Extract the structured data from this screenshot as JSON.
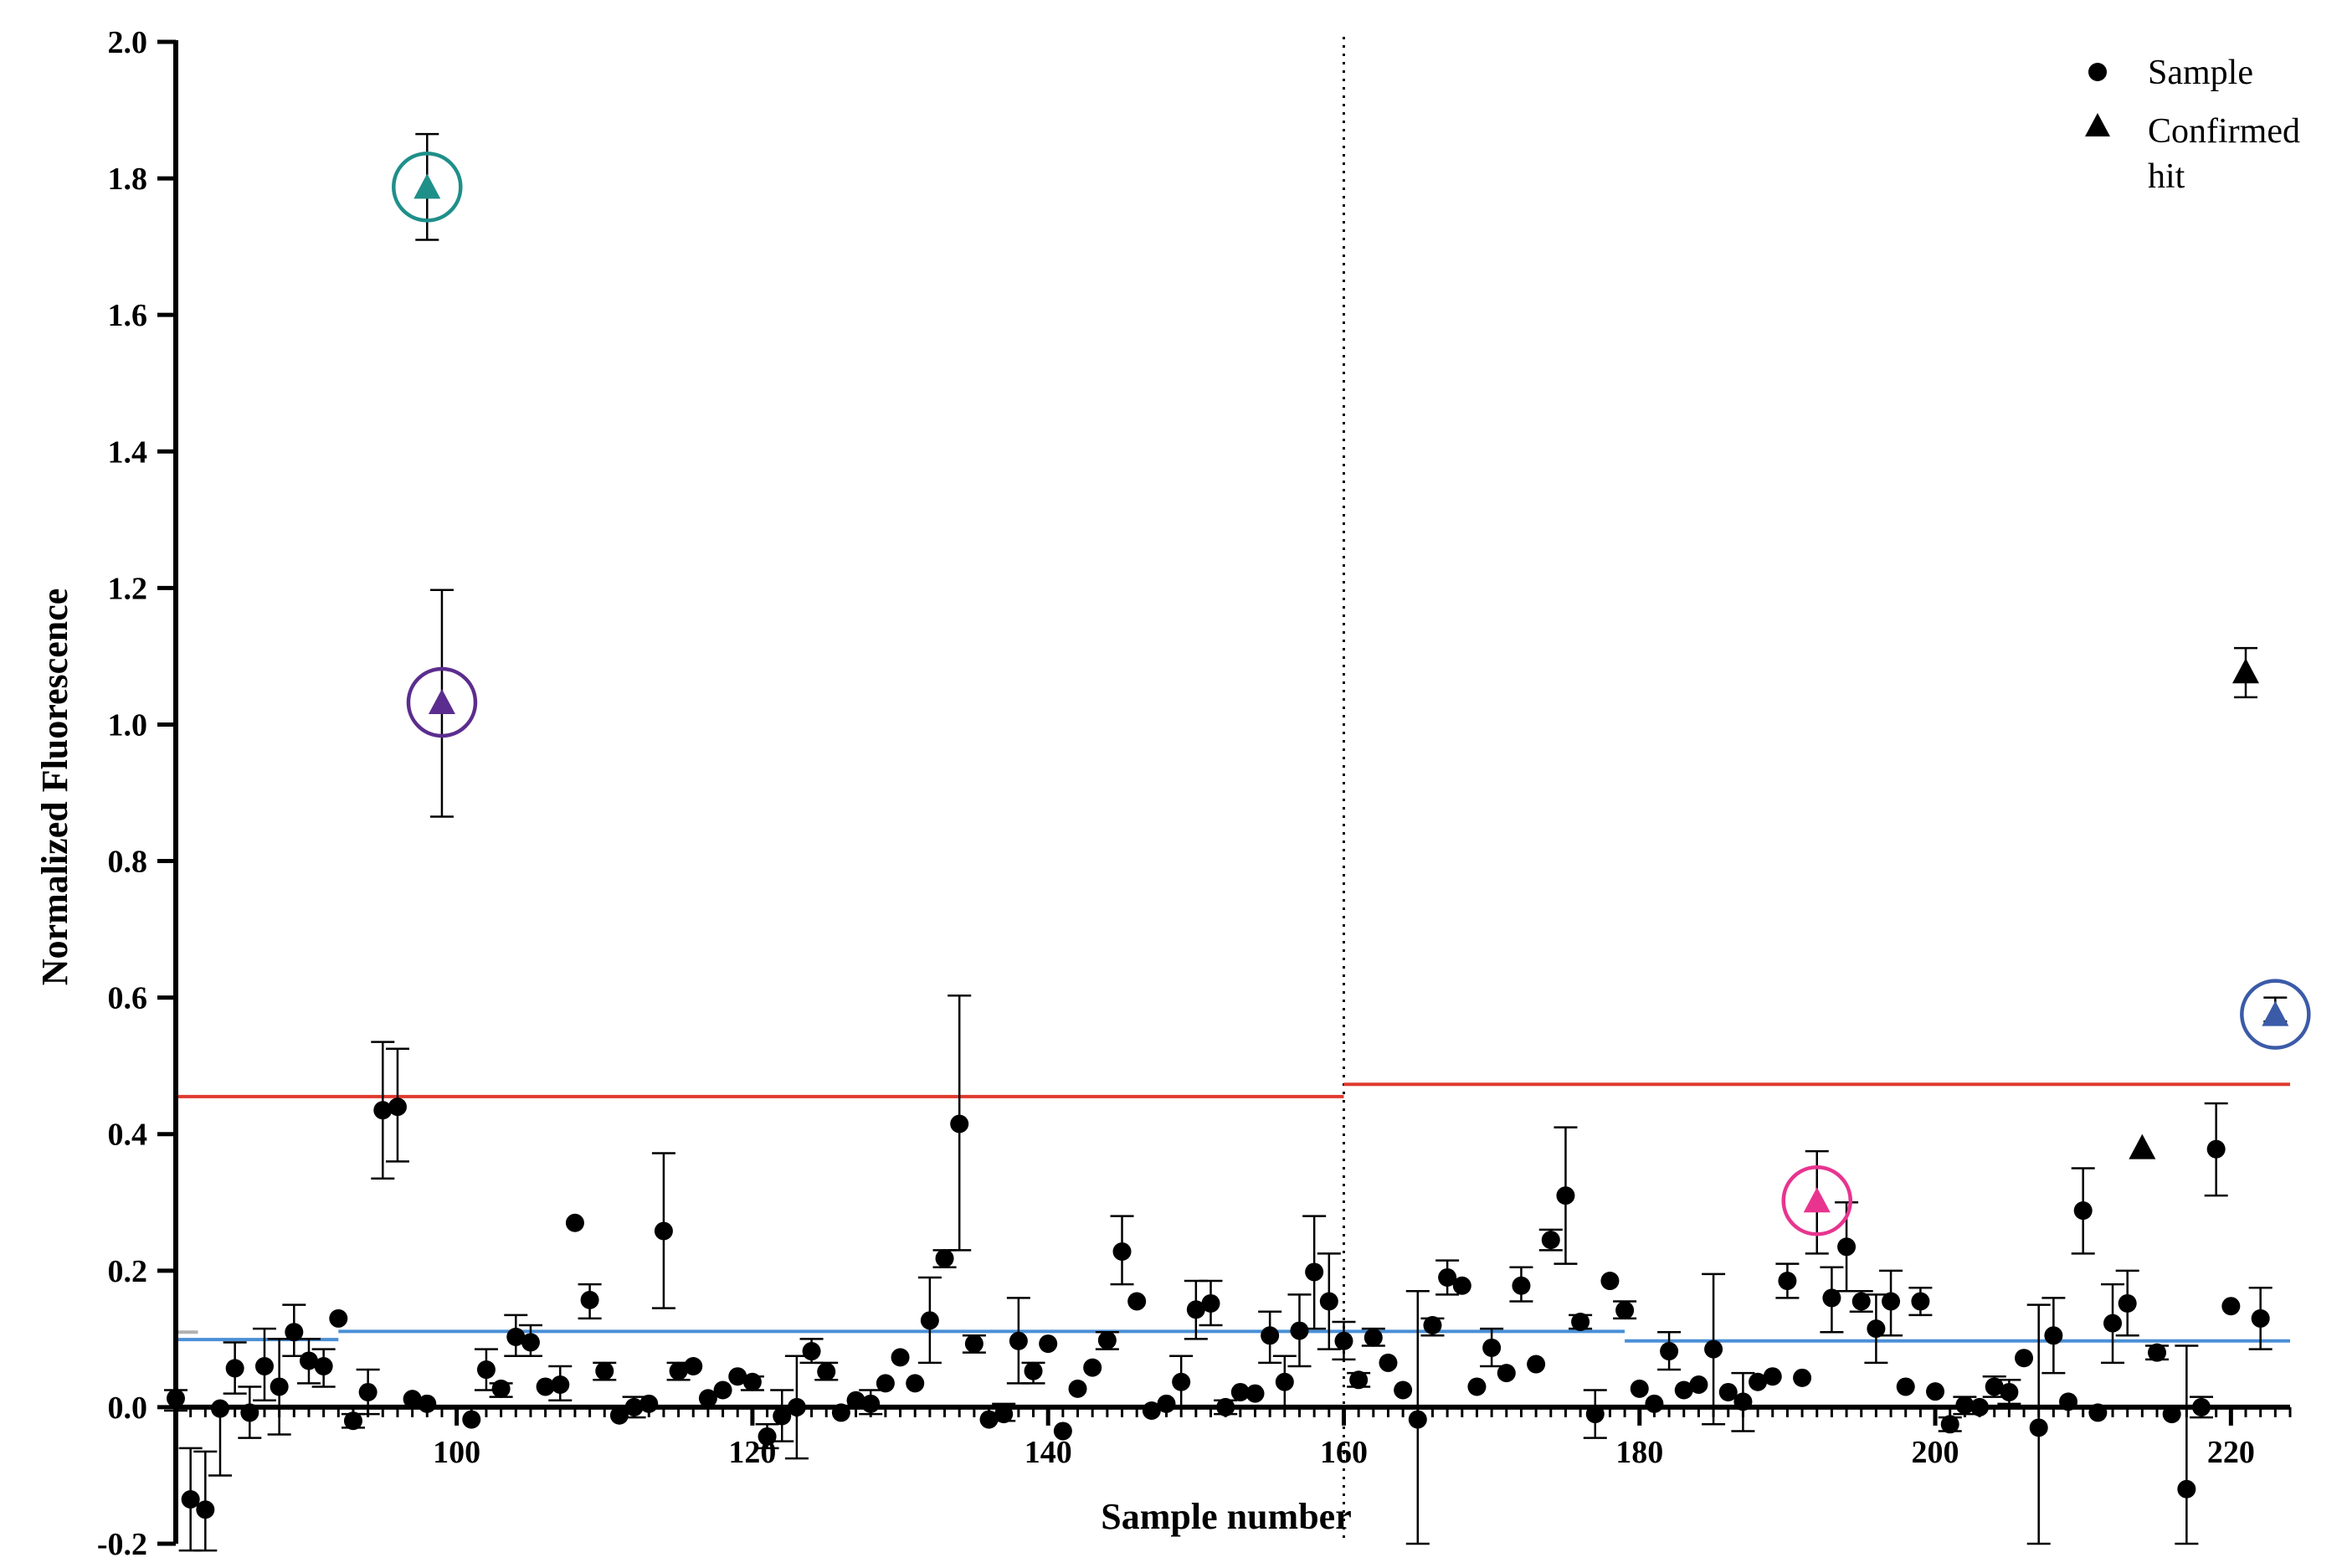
{
  "chart_data": {
    "type": "scatter",
    "xlabel": "Sample number",
    "ylabel": "Normalized Fluorescence",
    "xlim": [
      81,
      224
    ],
    "ylim": [
      -0.2,
      2.0
    ],
    "x_ticks": [
      100,
      120,
      140,
      160,
      180,
      200,
      220
    ],
    "x_tick_labels": [
      "100",
      "120",
      "140",
      "160",
      "180",
      "200",
      "220"
    ],
    "y_ticks": [
      -0.2,
      0.0,
      0.2,
      0.4,
      0.6,
      0.8,
      1.0,
      1.2,
      1.4,
      1.6,
      1.8,
      2.0
    ],
    "y_tick_labels": [
      "-0.2",
      "0.0",
      "0.2",
      "0.4",
      "0.6",
      "0.8",
      "1.0",
      "1.2",
      "1.4",
      "1.6",
      "1.8",
      "2.0"
    ],
    "grid": false,
    "legend": {
      "position": "top-right",
      "entries": [
        {
          "marker": "circle",
          "label": "Sample"
        },
        {
          "marker": "triangle",
          "label_lines": [
            "Confirmed",
            "hit"
          ]
        }
      ]
    },
    "divider_x": 160,
    "threshold_lines": [
      {
        "color": "#e03a2e",
        "x_start": 81,
        "x_end": 160,
        "y": 0.455
      },
      {
        "color": "#e03a2e",
        "x_start": 160,
        "x_end": 224,
        "y": 0.473
      }
    ],
    "baseline_lines": [
      {
        "color": "#b0b0b0",
        "x_start": 81,
        "x_end": 82.5,
        "y": 0.11
      },
      {
        "color": "#4a8fd6",
        "x_start": 81,
        "x_end": 92,
        "y": 0.099
      },
      {
        "color": "#4a8fd6",
        "x_start": 92,
        "x_end": 179,
        "y": 0.111
      },
      {
        "color": "#4a8fd6",
        "x_start": 179,
        "x_end": 224,
        "y": 0.097
      }
    ],
    "series": [
      {
        "marker": "circle",
        "points": [
          {
            "x": 81,
            "y": 0.013,
            "lo": -0.005,
            "hi": 0.025
          },
          {
            "x": 82,
            "y": -0.135,
            "lo": -0.21,
            "hi": -0.06
          },
          {
            "x": 83,
            "y": -0.15,
            "lo": -0.21,
            "hi": -0.065
          },
          {
            "x": 84,
            "y": -0.002,
            "lo": -0.1,
            "hi": 0.0
          },
          {
            "x": 85,
            "y": 0.057,
            "lo": 0.02,
            "hi": 0.095
          },
          {
            "x": 86,
            "y": -0.008,
            "lo": -0.045,
            "hi": 0.03
          },
          {
            "x": 87,
            "y": 0.06,
            "lo": 0.01,
            "hi": 0.115
          },
          {
            "x": 88,
            "y": 0.03,
            "lo": -0.04,
            "hi": 0.1
          },
          {
            "x": 89,
            "y": 0.11,
            "lo": 0.075,
            "hi": 0.15
          },
          {
            "x": 90,
            "y": 0.068,
            "lo": 0.035,
            "hi": 0.1
          },
          {
            "x": 91,
            "y": 0.06,
            "lo": 0.03,
            "hi": 0.085
          },
          {
            "x": 92,
            "y": 0.13
          },
          {
            "x": 93,
            "y": -0.02,
            "lo": -0.03,
            "hi": -0.01
          },
          {
            "x": 94,
            "y": 0.022,
            "lo": -0.01,
            "hi": 0.055
          },
          {
            "x": 95,
            "y": 0.435,
            "lo": 0.335,
            "hi": 0.535
          },
          {
            "x": 96,
            "y": 0.44,
            "lo": 0.36,
            "hi": 0.525
          },
          {
            "x": 97,
            "y": 0.012
          },
          {
            "x": 98,
            "y": 0.005
          },
          {
            "x": 101,
            "y": -0.018
          },
          {
            "x": 102,
            "y": 0.055,
            "lo": 0.025,
            "hi": 0.085
          },
          {
            "x": 103,
            "y": 0.027,
            "lo": 0.015,
            "hi": 0.035
          },
          {
            "x": 104,
            "y": 0.103,
            "lo": 0.075,
            "hi": 0.135
          },
          {
            "x": 105,
            "y": 0.095,
            "lo": 0.075,
            "hi": 0.12
          },
          {
            "x": 106,
            "y": 0.03
          },
          {
            "x": 107,
            "y": 0.033,
            "lo": 0.01,
            "hi": 0.06
          },
          {
            "x": 108,
            "y": 0.27
          },
          {
            "x": 109,
            "y": 0.157,
            "lo": 0.13,
            "hi": 0.18
          },
          {
            "x": 110,
            "y": 0.053,
            "lo": 0.04,
            "hi": 0.065
          },
          {
            "x": 111,
            "y": -0.012
          },
          {
            "x": 112,
            "y": 0.0,
            "lo": -0.015,
            "hi": 0.015
          },
          {
            "x": 113,
            "y": 0.005
          },
          {
            "x": 114,
            "y": 0.258,
            "lo": 0.145,
            "hi": 0.372
          },
          {
            "x": 115,
            "y": 0.053,
            "lo": 0.04,
            "hi": 0.065
          },
          {
            "x": 116,
            "y": 0.06
          },
          {
            "x": 117,
            "y": 0.013
          },
          {
            "x": 118,
            "y": 0.025
          },
          {
            "x": 119,
            "y": 0.045
          },
          {
            "x": 120,
            "y": 0.037,
            "lo": 0.025,
            "hi": 0.045
          },
          {
            "x": 121,
            "y": -0.043,
            "lo": -0.06,
            "hi": -0.025
          },
          {
            "x": 122,
            "y": -0.013,
            "lo": -0.05,
            "hi": 0.025
          },
          {
            "x": 123,
            "y": 0.0,
            "lo": -0.075,
            "hi": 0.075
          },
          {
            "x": 124,
            "y": 0.082,
            "lo": 0.065,
            "hi": 0.1
          },
          {
            "x": 125,
            "y": 0.052,
            "lo": 0.04,
            "hi": 0.065
          },
          {
            "x": 126,
            "y": -0.008
          },
          {
            "x": 127,
            "y": 0.01
          },
          {
            "x": 128,
            "y": 0.005,
            "lo": -0.01,
            "hi": 0.025
          },
          {
            "x": 129,
            "y": 0.035
          },
          {
            "x": 130,
            "y": 0.073
          },
          {
            "x": 131,
            "y": 0.035
          },
          {
            "x": 132,
            "y": 0.127,
            "lo": 0.065,
            "hi": 0.19
          },
          {
            "x": 133,
            "y": 0.218,
            "lo": 0.205,
            "hi": 0.23
          },
          {
            "x": 134,
            "y": 0.415,
            "lo": 0.23,
            "hi": 0.603
          },
          {
            "x": 135,
            "y": 0.093,
            "lo": 0.08,
            "hi": 0.105
          },
          {
            "x": 136,
            "y": -0.018
          },
          {
            "x": 137,
            "y": -0.01,
            "lo": -0.02,
            "hi": 0.005
          },
          {
            "x": 138,
            "y": 0.097,
            "lo": 0.035,
            "hi": 0.16
          },
          {
            "x": 139,
            "y": 0.053,
            "lo": 0.035,
            "hi": 0.065
          },
          {
            "x": 140,
            "y": 0.093
          },
          {
            "x": 141,
            "y": -0.035
          },
          {
            "x": 142,
            "y": 0.027
          },
          {
            "x": 143,
            "y": 0.058
          },
          {
            "x": 144,
            "y": 0.098,
            "lo": 0.085,
            "hi": 0.11
          },
          {
            "x": 145,
            "y": 0.228,
            "lo": 0.18,
            "hi": 0.28
          },
          {
            "x": 146,
            "y": 0.155
          },
          {
            "x": 147,
            "y": -0.005
          },
          {
            "x": 148,
            "y": 0.005
          },
          {
            "x": 149,
            "y": 0.037,
            "lo": 0.0,
            "hi": 0.075
          },
          {
            "x": 150,
            "y": 0.143,
            "lo": 0.1,
            "hi": 0.185
          },
          {
            "x": 151,
            "y": 0.152,
            "lo": 0.12,
            "hi": 0.185
          },
          {
            "x": 152,
            "y": 0.0,
            "lo": -0.01,
            "hi": 0.01
          },
          {
            "x": 153,
            "y": 0.022
          },
          {
            "x": 154,
            "y": 0.02
          },
          {
            "x": 155,
            "y": 0.105,
            "lo": 0.065,
            "hi": 0.14
          },
          {
            "x": 156,
            "y": 0.037,
            "lo": 0.0,
            "hi": 0.075
          },
          {
            "x": 157,
            "y": 0.112,
            "lo": 0.06,
            "hi": 0.165
          },
          {
            "x": 158,
            "y": 0.198,
            "lo": 0.115,
            "hi": 0.28
          },
          {
            "x": 159,
            "y": 0.155,
            "lo": 0.085,
            "hi": 0.225
          },
          {
            "x": 160,
            "y": 0.097,
            "lo": 0.07,
            "hi": 0.125
          },
          {
            "x": 161,
            "y": 0.04,
            "lo": 0.03,
            "hi": 0.05
          },
          {
            "x": 162,
            "y": 0.102,
            "lo": 0.09,
            "hi": 0.115
          },
          {
            "x": 163,
            "y": 0.065
          },
          {
            "x": 164,
            "y": 0.025
          },
          {
            "x": 165,
            "y": -0.018,
            "lo": -0.2,
            "hi": 0.17
          },
          {
            "x": 166,
            "y": 0.12,
            "lo": 0.105,
            "hi": 0.13
          },
          {
            "x": 167,
            "y": 0.19,
            "lo": 0.165,
            "hi": 0.215
          },
          {
            "x": 168,
            "y": 0.178
          },
          {
            "x": 169,
            "y": 0.03
          },
          {
            "x": 170,
            "y": 0.087,
            "lo": 0.06,
            "hi": 0.115
          },
          {
            "x": 171,
            "y": 0.05
          },
          {
            "x": 172,
            "y": 0.178,
            "lo": 0.155,
            "hi": 0.205
          },
          {
            "x": 173,
            "y": 0.063
          },
          {
            "x": 174,
            "y": 0.245,
            "lo": 0.23,
            "hi": 0.26
          },
          {
            "x": 175,
            "y": 0.31,
            "lo": 0.21,
            "hi": 0.41
          },
          {
            "x": 176,
            "y": 0.125,
            "lo": 0.115,
            "hi": 0.135
          },
          {
            "x": 177,
            "y": -0.01,
            "lo": -0.045,
            "hi": 0.025
          },
          {
            "x": 178,
            "y": 0.185
          },
          {
            "x": 179,
            "y": 0.142,
            "lo": 0.13,
            "hi": 0.155
          },
          {
            "x": 180,
            "y": 0.027
          },
          {
            "x": 181,
            "y": 0.005
          },
          {
            "x": 182,
            "y": 0.082,
            "lo": 0.055,
            "hi": 0.11
          },
          {
            "x": 183,
            "y": 0.025
          },
          {
            "x": 184,
            "y": 0.033
          },
          {
            "x": 185,
            "y": 0.085,
            "lo": -0.025,
            "hi": 0.195
          },
          {
            "x": 186,
            "y": 0.022
          },
          {
            "x": 187,
            "y": 0.008,
            "lo": -0.035,
            "hi": 0.05
          },
          {
            "x": 188,
            "y": 0.037
          },
          {
            "x": 189,
            "y": 0.045
          },
          {
            "x": 190,
            "y": 0.185,
            "lo": 0.16,
            "hi": 0.21
          },
          {
            "x": 191,
            "y": 0.043
          },
          {
            "x": 193,
            "y": 0.16,
            "lo": 0.11,
            "hi": 0.205
          },
          {
            "x": 194,
            "y": 0.235,
            "lo": 0.17,
            "hi": 0.3
          },
          {
            "x": 195,
            "y": 0.155,
            "lo": 0.14,
            "hi": 0.17
          },
          {
            "x": 196,
            "y": 0.115,
            "lo": 0.065,
            "hi": 0.165
          },
          {
            "x": 197,
            "y": 0.155,
            "lo": 0.105,
            "hi": 0.2
          },
          {
            "x": 198,
            "y": 0.03
          },
          {
            "x": 199,
            "y": 0.155,
            "lo": 0.135,
            "hi": 0.175
          },
          {
            "x": 200,
            "y": 0.023
          },
          {
            "x": 201,
            "y": -0.025,
            "lo": -0.035,
            "hi": -0.015
          },
          {
            "x": 202,
            "y": 0.003,
            "lo": -0.01,
            "hi": 0.015
          },
          {
            "x": 203,
            "y": 0.0
          },
          {
            "x": 204,
            "y": 0.03,
            "lo": 0.015,
            "hi": 0.045
          },
          {
            "x": 205,
            "y": 0.022,
            "lo": 0.005,
            "hi": 0.04
          },
          {
            "x": 206,
            "y": 0.072
          },
          {
            "x": 207,
            "y": -0.03,
            "lo": -0.2,
            "hi": 0.15
          },
          {
            "x": 208,
            "y": 0.105,
            "lo": 0.05,
            "hi": 0.16
          },
          {
            "x": 209,
            "y": 0.008
          },
          {
            "x": 210,
            "y": 0.288,
            "lo": 0.225,
            "hi": 0.35
          },
          {
            "x": 211,
            "y": -0.008
          },
          {
            "x": 212,
            "y": 0.123,
            "lo": 0.065,
            "hi": 0.18
          },
          {
            "x": 213,
            "y": 0.152,
            "lo": 0.105,
            "hi": 0.2
          },
          {
            "x": 215,
            "y": 0.08,
            "lo": 0.07,
            "hi": 0.09
          },
          {
            "x": 216,
            "y": -0.01
          },
          {
            "x": 217,
            "y": -0.12,
            "lo": -0.2,
            "hi": 0.09
          },
          {
            "x": 218,
            "y": 0.0,
            "lo": -0.015,
            "hi": 0.015
          },
          {
            "x": 219,
            "y": 0.378,
            "lo": 0.31,
            "hi": 0.445
          },
          {
            "x": 220,
            "y": 0.148
          },
          {
            "x": 222,
            "y": 0.13,
            "lo": 0.085,
            "hi": 0.175
          }
        ]
      },
      {
        "marker": "triangle",
        "points": [
          {
            "x": 98,
            "y": 1.785,
            "lo": 1.71,
            "hi": 1.865,
            "color": "#1f8f8a",
            "circled": true
          },
          {
            "x": 99,
            "y": 1.03,
            "lo": 0.865,
            "hi": 1.197,
            "color": "#5b2d8e",
            "circled": true
          },
          {
            "x": 192,
            "y": 0.3,
            "lo": 0.225,
            "hi": 0.375,
            "color": "#e8348f",
            "circled": true
          },
          {
            "x": 214,
            "y": 0.378,
            "color": "#000000",
            "circled": false
          },
          {
            "x": 221,
            "y": 1.075,
            "lo": 1.04,
            "hi": 1.112,
            "color": "#000000",
            "circled": false
          },
          {
            "x": 223,
            "y": 0.573,
            "lo": 0.565,
            "hi": 0.6,
            "color": "#3b5ba8",
            "circled": true
          }
        ]
      }
    ]
  }
}
